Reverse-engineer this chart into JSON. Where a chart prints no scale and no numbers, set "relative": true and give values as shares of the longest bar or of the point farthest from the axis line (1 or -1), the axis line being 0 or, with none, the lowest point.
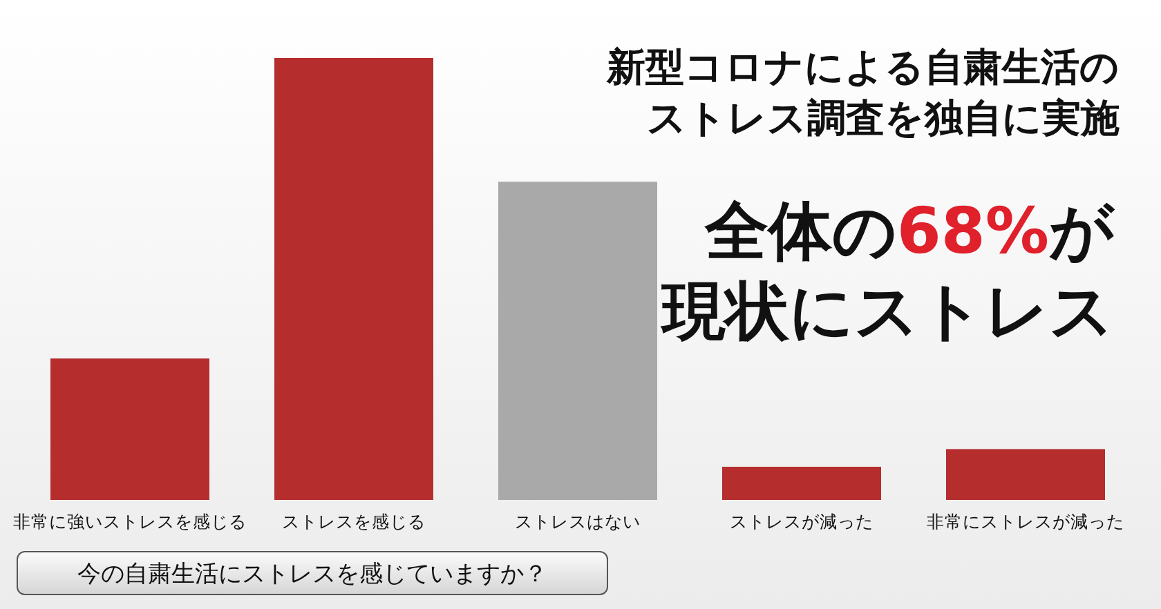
{
  "chart_data": {
    "type": "bar",
    "relative": true,
    "title": "新型コロナによる自粛生活のストレス調査を独自に実施",
    "subtitle": "全体の68%が現状にストレス",
    "categories": [
      "非常に強いストレスを感じる",
      "ストレスを感じる",
      "ストレスはない",
      "ストレスが減った",
      "非常にストレスが減った"
    ],
    "values": [
      0.32,
      1,
      0.72,
      0.075,
      0.115
    ],
    "colors": [
      "#b52d2d",
      "#b52d2d",
      "#a9a9a9",
      "#b52d2d",
      "#b52d2d"
    ],
    "annotations": [
      "今の自粛生活にストレスを感じていますか？"
    ]
  }
}
